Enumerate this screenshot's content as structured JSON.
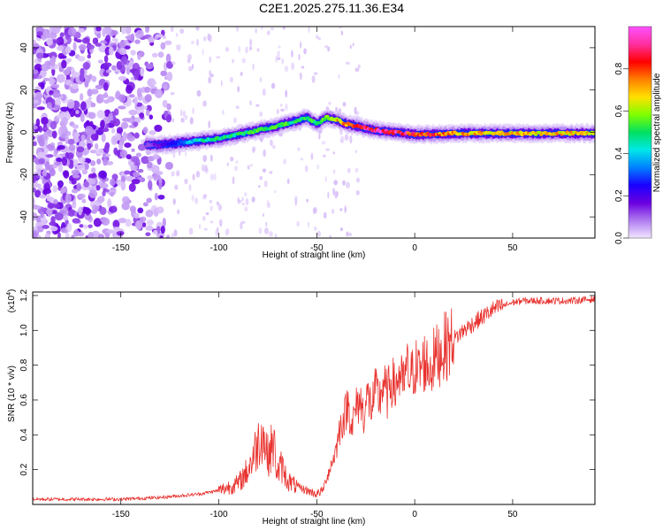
{
  "title": "C2E1.2025.275.11.36.E34",
  "chart_data": [
    {
      "type": "heatmap",
      "xlabel": "Height of straight line (km)",
      "ylabel": "Frequency (Hz)",
      "xlim": [
        -195,
        92
      ],
      "ylim": [
        -50,
        50
      ],
      "xticks": [
        -150,
        -100,
        -50,
        0,
        50
      ],
      "xtick_labels": [
        "-150",
        "-100",
        "-50",
        "0",
        "50"
      ],
      "yticks": [
        -40,
        -20,
        0,
        20,
        40
      ],
      "ytick_labels": [
        "-40",
        "-20",
        "0",
        "20",
        "40"
      ],
      "colorbar": {
        "label": "Normalized spectral amplitude",
        "range": [
          0,
          1
        ],
        "ticks": [
          0.0,
          0.2,
          0.4,
          0.6,
          0.8
        ],
        "tick_labels": [
          "0.0",
          "0.2",
          "0.4",
          "0.6",
          "0.8"
        ],
        "colors": [
          "#f0e6ff",
          "#b07bf0",
          "#6a00e0",
          "#1a00ff",
          "#0080ff",
          "#00e8e8",
          "#00e060",
          "#80ff00",
          "#ffe000",
          "#ff8000",
          "#ff0000",
          "#ff30a0",
          "#ff50ff"
        ]
      },
      "ridge": {
        "x": [
          -137,
          -130,
          -120,
          -110,
          -100,
          -90,
          -80,
          -70,
          -62,
          -55,
          -50,
          -45,
          -40,
          -35,
          -30,
          -20,
          -10,
          0,
          10,
          20,
          40,
          60,
          80,
          92
        ],
        "y": [
          -6,
          -6,
          -5,
          -4,
          -3,
          -1,
          1,
          3,
          5,
          7,
          4,
          7,
          6,
          4,
          3,
          1,
          0,
          -1,
          -1,
          -0.5,
          -0.5,
          -0.5,
          -0.5,
          -0.5
        ],
        "amplitude": [
          0.12,
          0.18,
          0.3,
          0.45,
          0.5,
          0.5,
          0.52,
          0.55,
          0.5,
          0.55,
          0.5,
          0.6,
          0.7,
          0.75,
          0.8,
          0.95,
          0.9,
          0.85,
          0.8,
          0.72,
          0.7,
          0.7,
          0.7,
          0.7
        ]
      },
      "noise_region_x": [
        -195,
        -125
      ]
    },
    {
      "type": "line",
      "xlabel": "Height of straight line (km)",
      "ylabel": "SNR (10 * v/v)",
      "exponent_label": "(x10",
      "exponent_sup": "4",
      "exponent_close": ")",
      "xlim": [
        -195,
        92
      ],
      "ylim": [
        0,
        1.22
      ],
      "xticks": [
        -150,
        -100,
        -50,
        0,
        50
      ],
      "xtick_labels": [
        "-150",
        "-100",
        "-50",
        "0",
        "50"
      ],
      "yticks": [
        0.2,
        0.4,
        0.6,
        0.8,
        1.0,
        1.2
      ],
      "ytick_labels": [
        "0.2",
        "0.4",
        "0.6",
        "0.8",
        "1.0",
        "1.2"
      ],
      "series": [
        {
          "name": "SNR",
          "color": "#e8322e",
          "x": [
            -195,
            -150,
            -130,
            -120,
            -110,
            -100,
            -95,
            -90,
            -85,
            -80,
            -78,
            -75,
            -72,
            -70,
            -68,
            -65,
            -60,
            -55,
            -50,
            -47,
            -45,
            -42,
            -40,
            -38,
            -36,
            -34,
            -32,
            -30,
            -28,
            -26,
            -24,
            -22,
            -20,
            -18,
            -16,
            -14,
            -12,
            -10,
            -8,
            -6,
            -4,
            -2,
            0,
            2,
            5,
            8,
            10,
            12,
            15,
            20,
            25,
            30,
            35,
            40,
            45,
            50,
            55,
            60,
            70,
            80,
            92
          ],
          "y": [
            0.03,
            0.03,
            0.04,
            0.05,
            0.06,
            0.08,
            0.1,
            0.12,
            0.2,
            0.35,
            0.42,
            0.28,
            0.35,
            0.18,
            0.22,
            0.14,
            0.1,
            0.08,
            0.06,
            0.08,
            0.15,
            0.25,
            0.32,
            0.45,
            0.5,
            0.58,
            0.45,
            0.55,
            0.6,
            0.52,
            0.62,
            0.56,
            0.65,
            0.6,
            0.7,
            0.62,
            0.72,
            0.66,
            0.75,
            0.68,
            0.78,
            0.72,
            0.8,
            0.76,
            0.82,
            0.78,
            0.84,
            0.86,
            0.9,
            0.95,
            1.0,
            1.04,
            1.08,
            1.12,
            1.14,
            1.16,
            1.17,
            1.17,
            1.17,
            1.17,
            1.18
          ]
        }
      ]
    }
  ]
}
